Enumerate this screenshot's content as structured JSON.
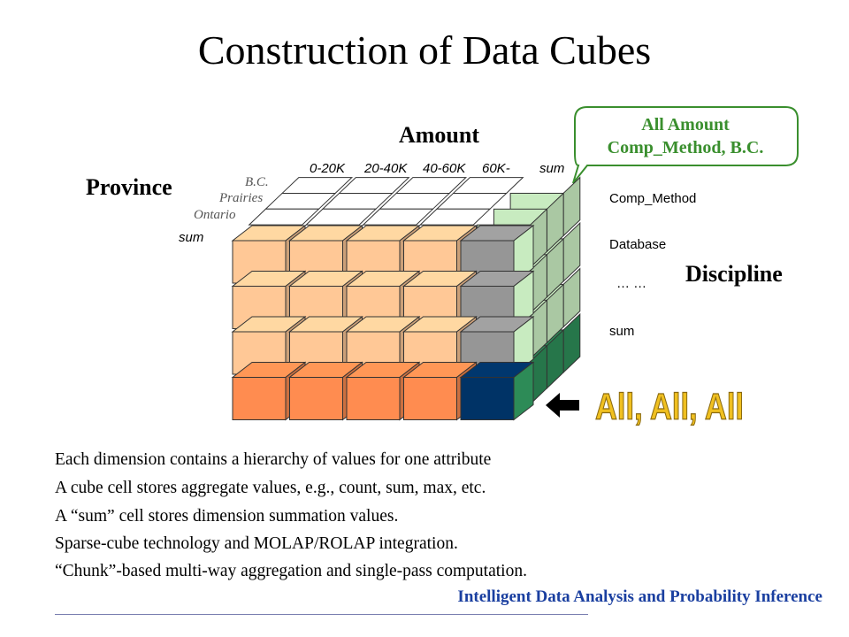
{
  "title": "Construction of Data Cubes",
  "axes": {
    "amount": "Amount",
    "province": "Province",
    "discipline": "Discipline"
  },
  "amount_columns": [
    "0-20K",
    "20-40K",
    "40-60K",
    "60K-",
    "sum"
  ],
  "province_labels": [
    "B.C.",
    "Prairies",
    "Ontario",
    "sum"
  ],
  "discipline_labels": [
    "Comp_Method",
    "Database",
    "… …",
    "sum"
  ],
  "callout": {
    "line1": "All Amount",
    "line2": "Comp_Method, B.C."
  },
  "all_label": "All, All, All",
  "bullets": [
    "Each dimension contains a hierarchy of  values for one attribute",
    "A cube cell stores aggregate values, e.g., count,  sum, max, etc.",
    "A “sum” cell stores dimension summation values.",
    "Sparse-cube technology and MOLAP/ROLAP integration.",
    "“Chunk”-based multi-way aggregation and single-pass computation."
  ],
  "footer": "Intelligent Data Analysis and Probability Inference",
  "colors": {
    "cell_orange": "#ffc896",
    "cell_dark_orange": "#ff8c50",
    "cell_gray": "#969696",
    "cell_navy": "#003366",
    "cell_light_green": "#c8ebc0",
    "cell_green": "#2d8b57",
    "callout_text": "#3a8f2e",
    "footer_text": "#1a3fa0",
    "all_label": "#f0c020"
  }
}
